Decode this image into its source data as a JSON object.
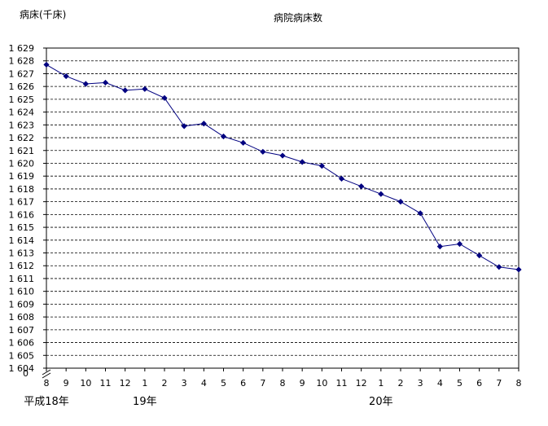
{
  "chart_data": {
    "type": "line",
    "title": "病院病床数",
    "ylabel": "病床(千床)",
    "xlabel": "",
    "x": [
      "8",
      "9",
      "10",
      "11",
      "12",
      "1",
      "2",
      "3",
      "4",
      "5",
      "6",
      "7",
      "8",
      "9",
      "10",
      "11",
      "12",
      "1",
      "2",
      "3",
      "4",
      "5",
      "6",
      "7",
      "8"
    ],
    "era_labels": [
      {
        "text": "平成18年",
        "at_index": 0
      },
      {
        "text": "19年",
        "at_index": 5
      },
      {
        "text": "20年",
        "at_index": 17
      }
    ],
    "y_ticks": [
      "1 604",
      "1 605",
      "1 606",
      "1 607",
      "1 608",
      "1 609",
      "1 610",
      "1 611",
      "1 612",
      "1 613",
      "1 614",
      "1 615",
      "1 616",
      "1 617",
      "1 618",
      "1 619",
      "1 620",
      "1 621",
      "1 622",
      "1 623",
      "1 624",
      "1 625",
      "1 626",
      "1 627",
      "1 628",
      "1 629"
    ],
    "y_origin_label": "0",
    "ylim": [
      1604,
      1629
    ],
    "axis_break": true,
    "grid": true,
    "series": [
      {
        "values": [
          1627.7,
          1626.8,
          1626.2,
          1626.3,
          1625.7,
          1625.8,
          1625.1,
          1622.9,
          1623.1,
          1622.1,
          1621.6,
          1620.9,
          1620.6,
          1620.1,
          1619.8,
          1618.8,
          1618.2,
          1617.6,
          1617.0,
          1616.1,
          1613.5,
          1613.7,
          1612.8,
          1611.9,
          1611.7
        ],
        "color": "#000080"
      }
    ]
  }
}
